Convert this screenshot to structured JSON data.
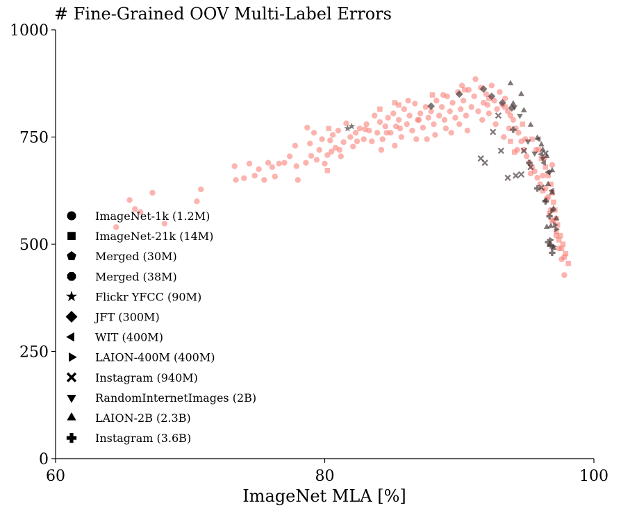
{
  "chart_data": {
    "type": "scatter",
    "title": "# Fine-Grained OOV Multi-Label Errors",
    "xlabel": "ImageNet MLA [%]",
    "ylabel": "",
    "xlim": [
      60,
      100
    ],
    "ylim": [
      0,
      1000
    ],
    "xticks": [
      60,
      80,
      100
    ],
    "yticks": [
      0,
      250,
      500,
      750,
      1000
    ],
    "grid": false,
    "legend_position": "lower-left",
    "colors": {
      "salmon": "#f8766d",
      "dark": "#4a3b3b"
    },
    "legend": [
      {
        "label": "ImageNet-1k (1.2M)",
        "marker": "circle"
      },
      {
        "label": "ImageNet-21k (14M)",
        "marker": "square"
      },
      {
        "label": "Merged (30M)",
        "marker": "pentagon"
      },
      {
        "label": "Merged (38M)",
        "marker": "octagon"
      },
      {
        "label": "Flickr YFCC (90M)",
        "marker": "star"
      },
      {
        "label": "JFT (300M)",
        "marker": "diamond"
      },
      {
        "label": "WIT (400M)",
        "marker": "triangle-left"
      },
      {
        "label": "LAION-400M (400M)",
        "marker": "triangle-right"
      },
      {
        "label": "Instagram (940M)",
        "marker": "x"
      },
      {
        "label": "RandomInternetImages (2B)",
        "marker": "triangle-down"
      },
      {
        "label": "LAION-2B (2.3B)",
        "marker": "triangle-up"
      },
      {
        "label": "Instagram (3.6B)",
        "marker": "plus"
      }
    ],
    "series": [
      {
        "marker": "circle",
        "color": "salmon",
        "points": [
          [
            64.5,
            540
          ],
          [
            65.5,
            603
          ],
          [
            65.9,
            582
          ],
          [
            66.3,
            575
          ],
          [
            67.2,
            620
          ],
          [
            68.1,
            548
          ],
          [
            70.5,
            600
          ],
          [
            70.8,
            628
          ],
          [
            73.3,
            682
          ],
          [
            73.4,
            650
          ],
          [
            74.0,
            654
          ],
          [
            74.4,
            688
          ],
          [
            74.8,
            660
          ],
          [
            75.1,
            675
          ],
          [
            75.5,
            650
          ],
          [
            75.8,
            690
          ],
          [
            76.1,
            680
          ],
          [
            76.3,
            658
          ],
          [
            76.6,
            688
          ],
          [
            77.0,
            690
          ],
          [
            77.4,
            705
          ],
          [
            77.8,
            730
          ],
          [
            77.9,
            682
          ],
          [
            78.0,
            650
          ],
          [
            78.6,
            690
          ],
          [
            78.7,
            772
          ],
          [
            78.9,
            735
          ],
          [
            79.0,
            706
          ],
          [
            79.2,
            760
          ],
          [
            79.4,
            697
          ],
          [
            79.6,
            720
          ],
          [
            79.8,
            745
          ],
          [
            80.0,
            688
          ],
          [
            80.2,
            708
          ],
          [
            80.4,
            742
          ],
          [
            80.6,
            755
          ],
          [
            80.8,
            725
          ],
          [
            81.0,
            765
          ],
          [
            81.2,
            705
          ],
          [
            81.4,
            738
          ],
          [
            81.6,
            782
          ],
          [
            81.9,
            750
          ],
          [
            82.1,
            728
          ],
          [
            82.3,
            760
          ],
          [
            82.6,
            770
          ],
          [
            82.9,
            745
          ],
          [
            83.1,
            780
          ],
          [
            83.3,
            765
          ],
          [
            83.5,
            740
          ],
          [
            83.7,
            800
          ],
          [
            83.9,
            760
          ],
          [
            84.1,
            785
          ],
          [
            84.3,
            745
          ],
          [
            84.5,
            775
          ],
          [
            84.7,
            795
          ],
          [
            84.9,
            760
          ],
          [
            85.1,
            805
          ],
          [
            85.3,
            775
          ],
          [
            85.5,
            790
          ],
          [
            85.7,
            750
          ],
          [
            85.9,
            815
          ],
          [
            86.1,
            780
          ],
          [
            86.3,
            800
          ],
          [
            86.5,
            765
          ],
          [
            86.7,
            828
          ],
          [
            86.9,
            790
          ],
          [
            87.1,
            805
          ],
          [
            87.3,
            772
          ],
          [
            87.5,
            820
          ],
          [
            87.7,
            795
          ],
          [
            87.9,
            810
          ],
          [
            88.1,
            780
          ],
          [
            88.3,
            835
          ],
          [
            88.5,
            800
          ],
          [
            88.7,
            820
          ],
          [
            88.9,
            790
          ],
          [
            89.1,
            845
          ],
          [
            89.3,
            810
          ],
          [
            89.5,
            830
          ],
          [
            89.7,
            795
          ],
          [
            89.9,
            855
          ],
          [
            90.1,
            815
          ],
          [
            90.3,
            835
          ],
          [
            90.5,
            800
          ],
          [
            90.7,
            860
          ],
          [
            90.9,
            820
          ],
          [
            91.1,
            845
          ],
          [
            91.2,
            885
          ],
          [
            91.4,
            810
          ],
          [
            91.6,
            865
          ],
          [
            91.8,
            830
          ],
          [
            92.0,
            850
          ],
          [
            92.2,
            805
          ],
          [
            92.4,
            870
          ],
          [
            92.6,
            835
          ],
          [
            92.8,
            815
          ],
          [
            93.0,
            855
          ],
          [
            93.2,
            825
          ],
          [
            93.4,
            840
          ],
          [
            93.6,
            810
          ],
          [
            93.8,
            800
          ],
          [
            94.0,
            790
          ],
          [
            94.2,
            770
          ],
          [
            94.4,
            760
          ],
          [
            94.6,
            740
          ],
          [
            94.8,
            720
          ],
          [
            95.0,
            705
          ],
          [
            95.2,
            690
          ],
          [
            95.4,
            680
          ],
          [
            95.6,
            670
          ],
          [
            95.8,
            655
          ],
          [
            96.0,
            640
          ],
          [
            96.2,
            660
          ],
          [
            96.4,
            630
          ],
          [
            96.6,
            610
          ],
          [
            96.8,
            580
          ],
          [
            97.0,
            555
          ],
          [
            97.2,
            520
          ],
          [
            97.4,
            490
          ],
          [
            97.6,
            465
          ],
          [
            97.8,
            428
          ],
          [
            86.2,
            835
          ],
          [
            88.8,
            848
          ],
          [
            90.2,
            870
          ],
          [
            92.1,
            825
          ],
          [
            89.4,
            760
          ],
          [
            87.6,
            745
          ],
          [
            85.2,
            730
          ],
          [
            84.2,
            720
          ],
          [
            86.8,
            745
          ],
          [
            88.2,
            755
          ],
          [
            90.6,
            765
          ],
          [
            92.7,
            780
          ],
          [
            93.7,
            770
          ],
          [
            94.9,
            745
          ],
          [
            95.7,
            720
          ],
          [
            96.3,
            700
          ],
          [
            96.9,
            685
          ],
          [
            95.3,
            665
          ],
          [
            94.3,
            720
          ],
          [
            93.3,
            750
          ],
          [
            91.7,
            790
          ],
          [
            90.0,
            780
          ],
          [
            89.0,
            770
          ],
          [
            87.0,
            790
          ],
          [
            85.6,
            770
          ],
          [
            84.6,
            760
          ],
          [
            83.0,
            768
          ],
          [
            82.4,
            740
          ],
          [
            81.1,
            720
          ],
          [
            80.5,
            716
          ]
        ]
      },
      {
        "marker": "square",
        "color": "salmon",
        "points": [
          [
            80.2,
            672
          ],
          [
            80.3,
            770
          ],
          [
            84.1,
            815
          ],
          [
            85.2,
            830
          ],
          [
            85.5,
            825
          ],
          [
            88.0,
            848
          ],
          [
            90.4,
            860
          ],
          [
            92.2,
            840
          ],
          [
            93.4,
            820
          ],
          [
            94.7,
            780
          ],
          [
            95.4,
            745
          ],
          [
            95.9,
            720
          ],
          [
            96.1,
            700
          ],
          [
            96.4,
            680
          ],
          [
            96.6,
            660
          ],
          [
            96.8,
            640
          ],
          [
            96.9,
            620
          ],
          [
            97.0,
            598
          ],
          [
            97.1,
            580
          ],
          [
            97.2,
            560
          ],
          [
            97.3,
            545
          ],
          [
            97.5,
            520
          ],
          [
            97.7,
            500
          ],
          [
            97.9,
            478
          ],
          [
            98.1,
            455
          ],
          [
            96.2,
            625
          ],
          [
            96.5,
            605
          ],
          [
            96.7,
            572
          ],
          [
            96.9,
            555
          ],
          [
            97.2,
            530
          ],
          [
            97.4,
            510
          ],
          [
            97.6,
            490
          ],
          [
            97.8,
            470
          ],
          [
            94.1,
            715
          ],
          [
            93.8,
            740
          ]
        ]
      },
      {
        "marker": "star",
        "color": "dark",
        "points": [
          [
            81.7,
            770
          ],
          [
            82.0,
            775
          ]
        ]
      },
      {
        "marker": "diamond",
        "color": "dark",
        "points": [
          [
            87.9,
            822
          ],
          [
            90.0,
            850
          ],
          [
            91.8,
            862
          ],
          [
            92.4,
            845
          ],
          [
            93.2,
            830
          ],
          [
            93.9,
            818
          ]
        ]
      },
      {
        "marker": "triangle-left",
        "color": "dark",
        "points": [
          [
            95.9,
            745
          ],
          [
            96.1,
            710
          ],
          [
            96.3,
            690
          ],
          [
            96.6,
            668
          ],
          [
            96.9,
            625
          ],
          [
            96.4,
            602
          ]
        ]
      },
      {
        "marker": "triangle-right",
        "color": "dark",
        "points": [
          [
            96.9,
            578
          ],
          [
            97.1,
            545
          ],
          [
            97.2,
            535
          ],
          [
            96.8,
            510
          ],
          [
            97.0,
            495
          ]
        ]
      },
      {
        "marker": "x",
        "color": "dark",
        "points": [
          [
            92.5,
            762
          ],
          [
            92.9,
            800
          ],
          [
            94.8,
            718
          ],
          [
            95.3,
            680
          ],
          [
            93.6,
            655
          ],
          [
            94.2,
            660
          ],
          [
            94.6,
            663
          ],
          [
            91.6,
            700
          ],
          [
            91.9,
            690
          ],
          [
            93.1,
            718
          ],
          [
            96.1,
            632
          ],
          [
            96.4,
            712
          ]
        ]
      },
      {
        "marker": "triangle-down",
        "color": "dark",
        "points": [
          [
            94.1,
            820
          ],
          [
            94.5,
            800
          ],
          [
            95.1,
            740
          ],
          [
            95.6,
            712
          ],
          [
            96.2,
            700
          ],
          [
            96.7,
            668
          ]
        ]
      },
      {
        "marker": "triangle-up",
        "color": "dark",
        "points": [
          [
            93.8,
            875
          ],
          [
            94.6,
            850
          ],
          [
            94.0,
            828
          ],
          [
            94.8,
            812
          ],
          [
            95.3,
            778
          ],
          [
            95.8,
            748
          ],
          [
            96.1,
            732
          ],
          [
            96.5,
            705
          ],
          [
            96.9,
            672
          ],
          [
            96.6,
            640
          ],
          [
            96.9,
            620
          ],
          [
            97.0,
            583
          ],
          [
            97.2,
            560
          ],
          [
            96.8,
            542
          ],
          [
            96.5,
            540
          ],
          [
            96.7,
            498
          ],
          [
            97.0,
            491
          ],
          [
            96.2,
            720
          ]
        ]
      },
      {
        "marker": "plus",
        "color": "dark",
        "points": [
          [
            94.0,
            767
          ],
          [
            95.2,
            690
          ],
          [
            95.8,
            630
          ],
          [
            96.4,
            600
          ],
          [
            96.7,
            565
          ],
          [
            96.6,
            505
          ],
          [
            96.8,
            497
          ],
          [
            96.9,
            480
          ]
        ]
      }
    ]
  }
}
